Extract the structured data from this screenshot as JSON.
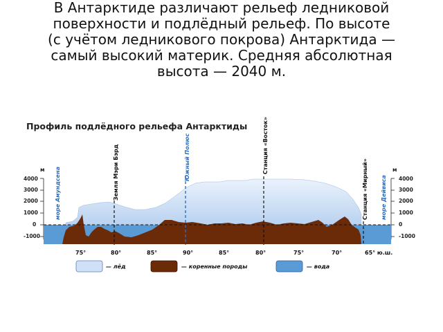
{
  "intro_lines": [
    "В Антарктиде различают рельеф ледниковой",
    "поверхности и подлёдный рельеф. По высоте",
    "(с учётом ледникового покрова) Антарктида —",
    "самый высокий материк. Средняя абсолютная",
    "высота — 2040 м."
  ],
  "diagram": {
    "title": "Профиль подлёдного рельефа Антарктиды",
    "unit_left": "м",
    "unit_right": "м",
    "y_ticks": [
      "4000",
      "3000",
      "2000",
      "1000",
      "0",
      "-1000"
    ],
    "y_ticks_right": [
      "4000",
      "3000",
      "2000",
      "1000",
      "0",
      "-1000"
    ],
    "x_ticks": [
      "75°",
      "80°",
      "85°",
      "90°",
      "85°",
      "80°",
      "75°",
      "70°",
      "65° ю.ш."
    ],
    "vertical_labels": {
      "amundsen": "море Амундсена",
      "mary_byrd": "Земля Мэри Бэрд",
      "south_pole": "Южный Полюс",
      "vostok": "Станция «Восток»",
      "mirny": "Станция «Мирный»",
      "davis": "море Дейвиса"
    },
    "legend": {
      "ice": "— лёд",
      "bedrock": "— коренные породы",
      "water": "— вода"
    },
    "colors": {
      "ice": "#cfe0f7",
      "bedrock": "#6b2a08",
      "water": "#5b9bd5",
      "pole_line": "#2f6fbf",
      "title": "#222222"
    }
  }
}
